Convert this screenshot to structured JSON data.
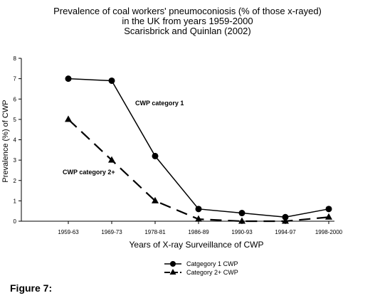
{
  "figure_caption": "Figure 7:",
  "chart_data": {
    "type": "line",
    "title_lines": [
      "Prevalence of coal workers' pneumoconiosis (% of those x-rayed)",
      "in the UK from years 1959-2000",
      "Scarisbrick and Quinlan (2002)"
    ],
    "xlabel": "Years of X-ray Surveillance of CWP",
    "ylabel": "Prevalence (%) of CWP",
    "categories": [
      "1959-63",
      "1969-73",
      "1978-81",
      "1986-89",
      "1990-93",
      "1994-97",
      "1998-2000"
    ],
    "ylim": [
      0,
      8
    ],
    "yticks": [
      "0",
      "1",
      "2",
      "3",
      "4",
      "5",
      "6",
      "7",
      "8"
    ],
    "grid": false,
    "legend_position": "bottom",
    "series": [
      {
        "name": "Catgegory 1 CWP",
        "marker": "circle",
        "line": "solid",
        "values": [
          7.0,
          6.9,
          3.2,
          0.6,
          0.4,
          0.2,
          0.6
        ]
      },
      {
        "name": "Category 2+ CWP",
        "marker": "triangle",
        "line": "dashed",
        "values": [
          5.0,
          3.0,
          1.0,
          0.1,
          0.0,
          0.0,
          0.2
        ]
      }
    ],
    "annotations": [
      "CWP category 1",
      "CWP category 2+"
    ]
  }
}
